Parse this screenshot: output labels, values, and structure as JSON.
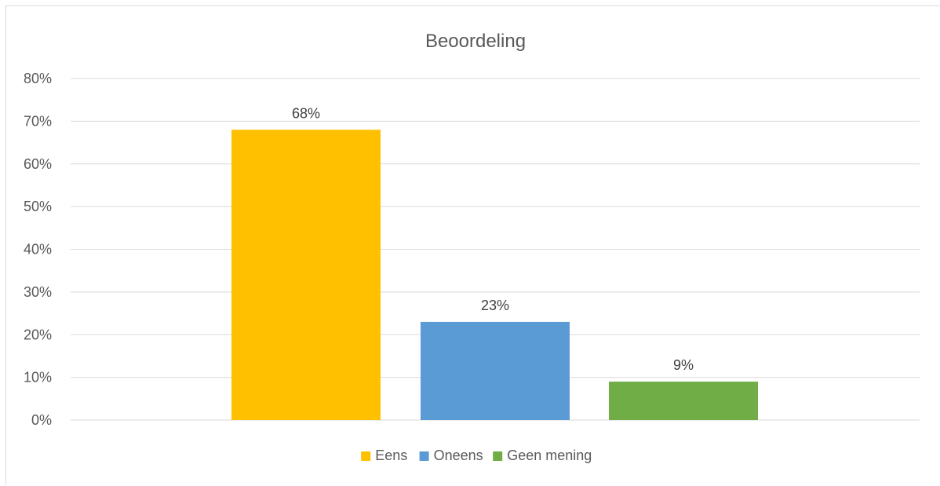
{
  "chart_data": {
    "type": "bar",
    "title": "Beoordeling",
    "xlabel": "",
    "ylabel": "",
    "ylim": [
      0,
      80
    ],
    "y_ticks": [
      "0%",
      "10%",
      "20%",
      "30%",
      "40%",
      "50%",
      "60%",
      "70%",
      "80%"
    ],
    "grid": true,
    "legend_position": "bottom",
    "series": [
      {
        "name": "Eens",
        "value": 68,
        "label": "68%",
        "color": "#FFC000"
      },
      {
        "name": "Oneens",
        "value": 23,
        "label": "23%",
        "color": "#5B9BD5"
      },
      {
        "name": "Geen mening",
        "value": 9,
        "label": "9%",
        "color": "#70AD47"
      }
    ]
  }
}
